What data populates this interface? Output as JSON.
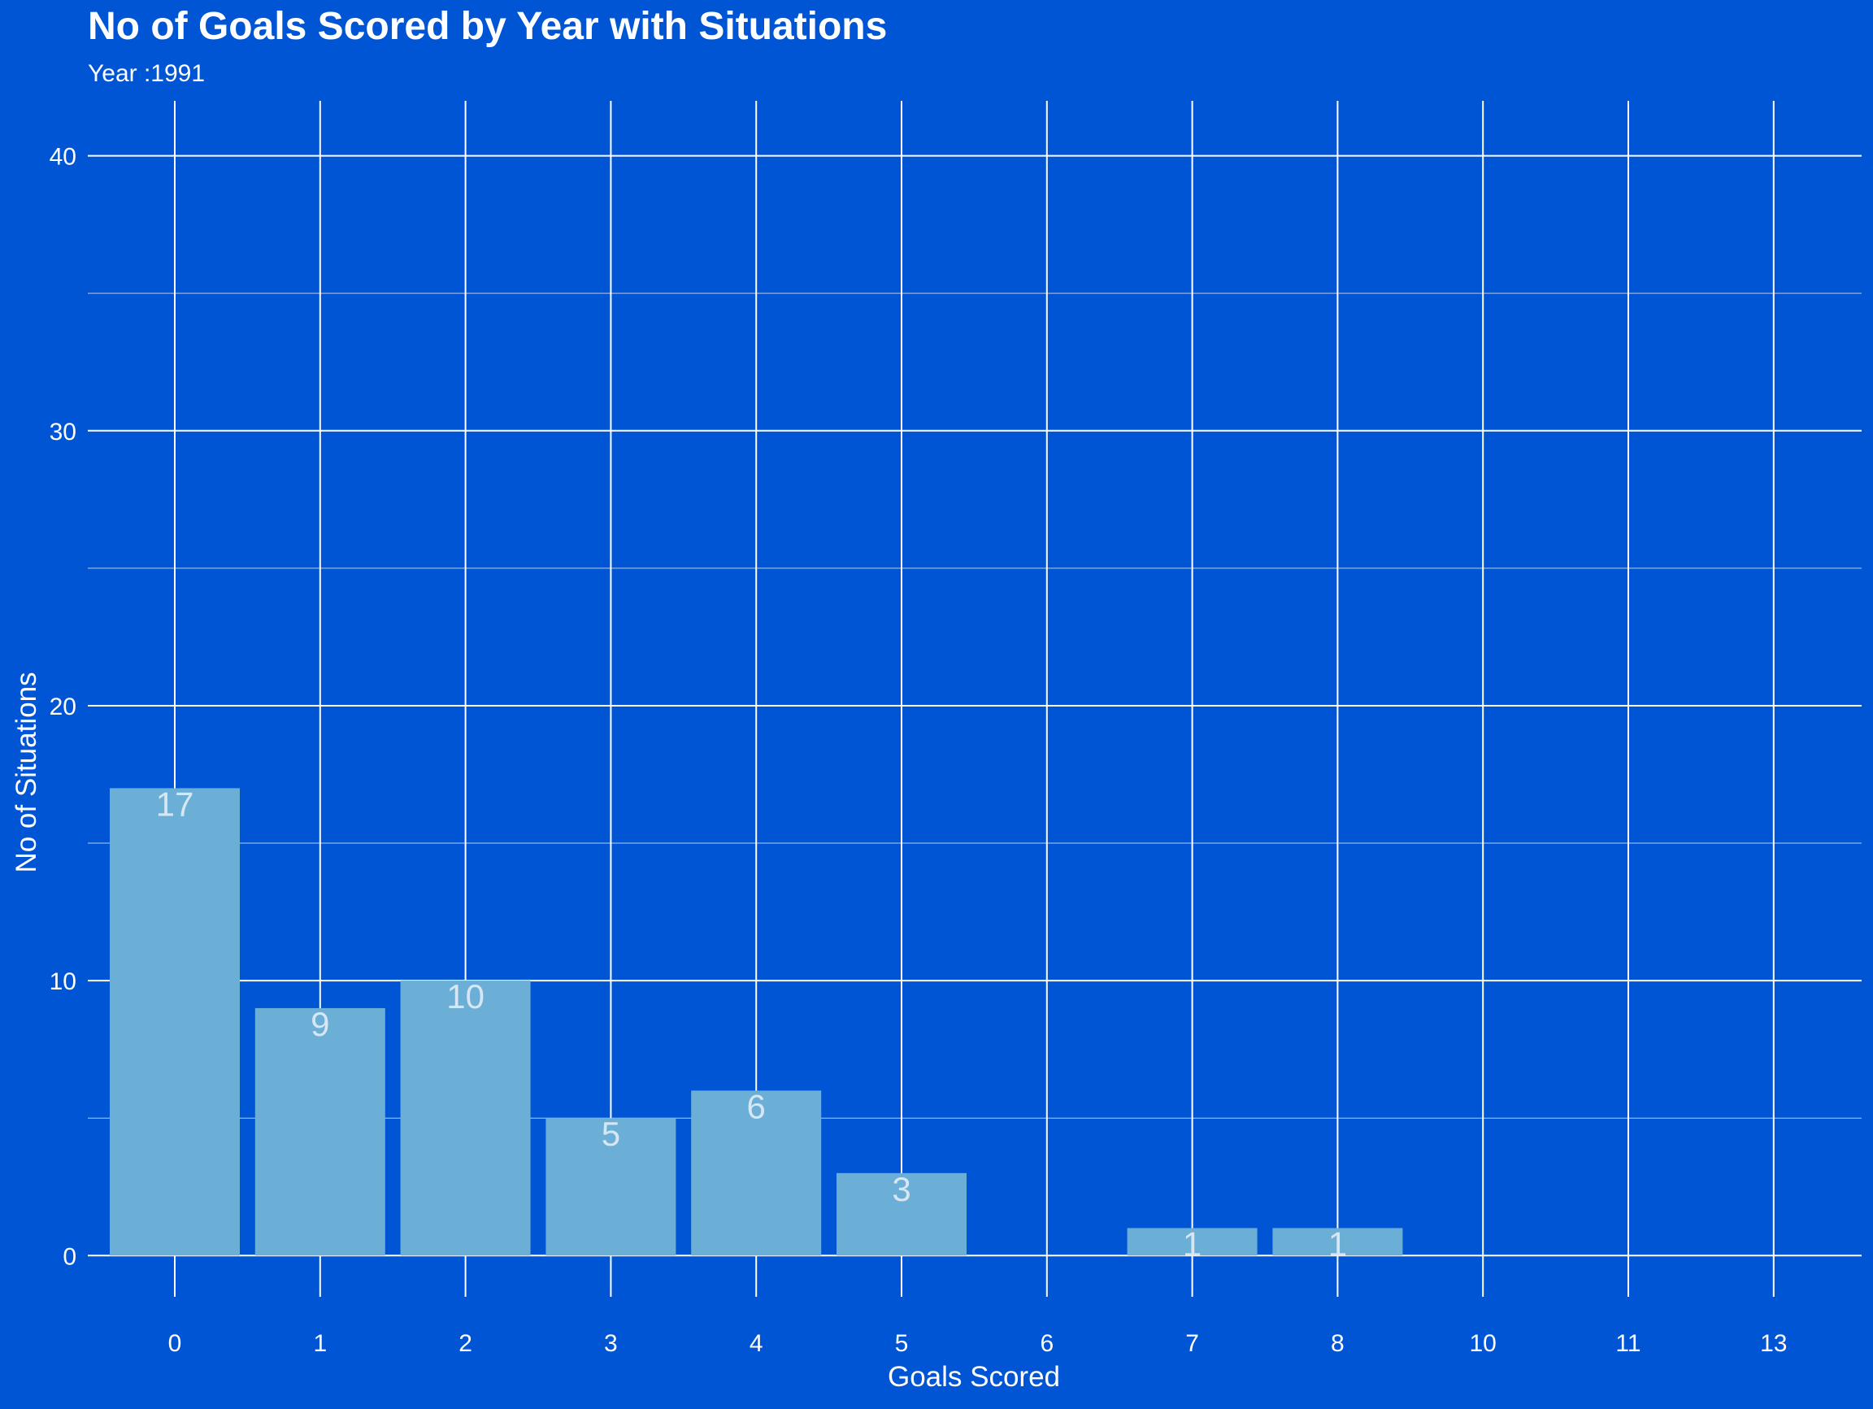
{
  "chart_data": {
    "type": "bar",
    "title": "No of Goals Scored by Year with Situations",
    "subtitle": "Year :1991",
    "xlabel": "Goals Scored",
    "ylabel": "No of Situations",
    "categories": [
      "0",
      "1",
      "2",
      "3",
      "4",
      "5",
      "6",
      "7",
      "8",
      "10",
      "11",
      "13"
    ],
    "values": [
      17,
      9,
      10,
      5,
      6,
      3,
      0,
      1,
      1,
      0,
      0,
      0
    ],
    "ylim": [
      -1.5,
      42
    ],
    "yticks": [
      0,
      10,
      20,
      30,
      40
    ],
    "grid": true,
    "legend": "none",
    "colors": {
      "background": "#0055d4",
      "bar": "#6baed6",
      "grid": "#ffffff",
      "text": "#ffffff",
      "data_label": "#d6e6f2"
    }
  }
}
